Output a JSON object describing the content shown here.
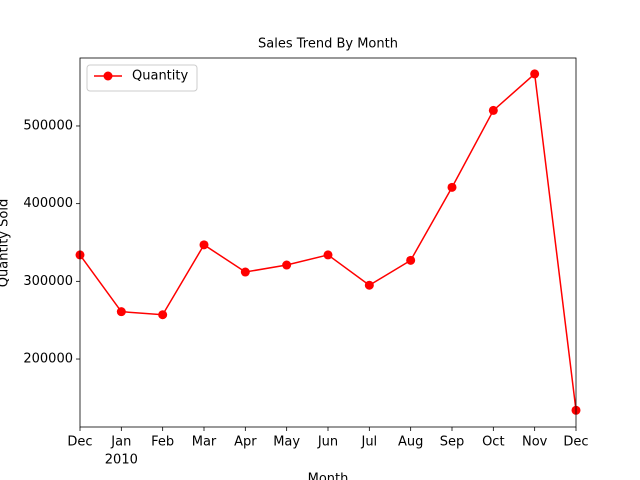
{
  "chart_data": {
    "type": "line",
    "title": "Sales Trend By Month",
    "xlabel": "Month",
    "ylabel": "Quantity Sold",
    "categories": [
      "Dec",
      "Jan",
      "Feb",
      "Mar",
      "Apr",
      "May",
      "Jun",
      "Jul",
      "Aug",
      "Sep",
      "Oct",
      "Nov",
      "Dec"
    ],
    "x_year_labels": [
      null,
      "2010",
      null,
      null,
      null,
      null,
      null,
      null,
      null,
      null,
      null,
      null,
      null
    ],
    "series": [
      {
        "name": "Quantity",
        "color": "#ff0000",
        "values": [
          334000,
          261000,
          257000,
          347000,
          312000,
          321000,
          334000,
          295000,
          327000,
          421000,
          520000,
          567000,
          134000
        ]
      }
    ],
    "ylim": [
      112500,
      587500
    ],
    "yticks": [
      200000,
      300000,
      400000,
      500000
    ],
    "legend": "upper left"
  }
}
